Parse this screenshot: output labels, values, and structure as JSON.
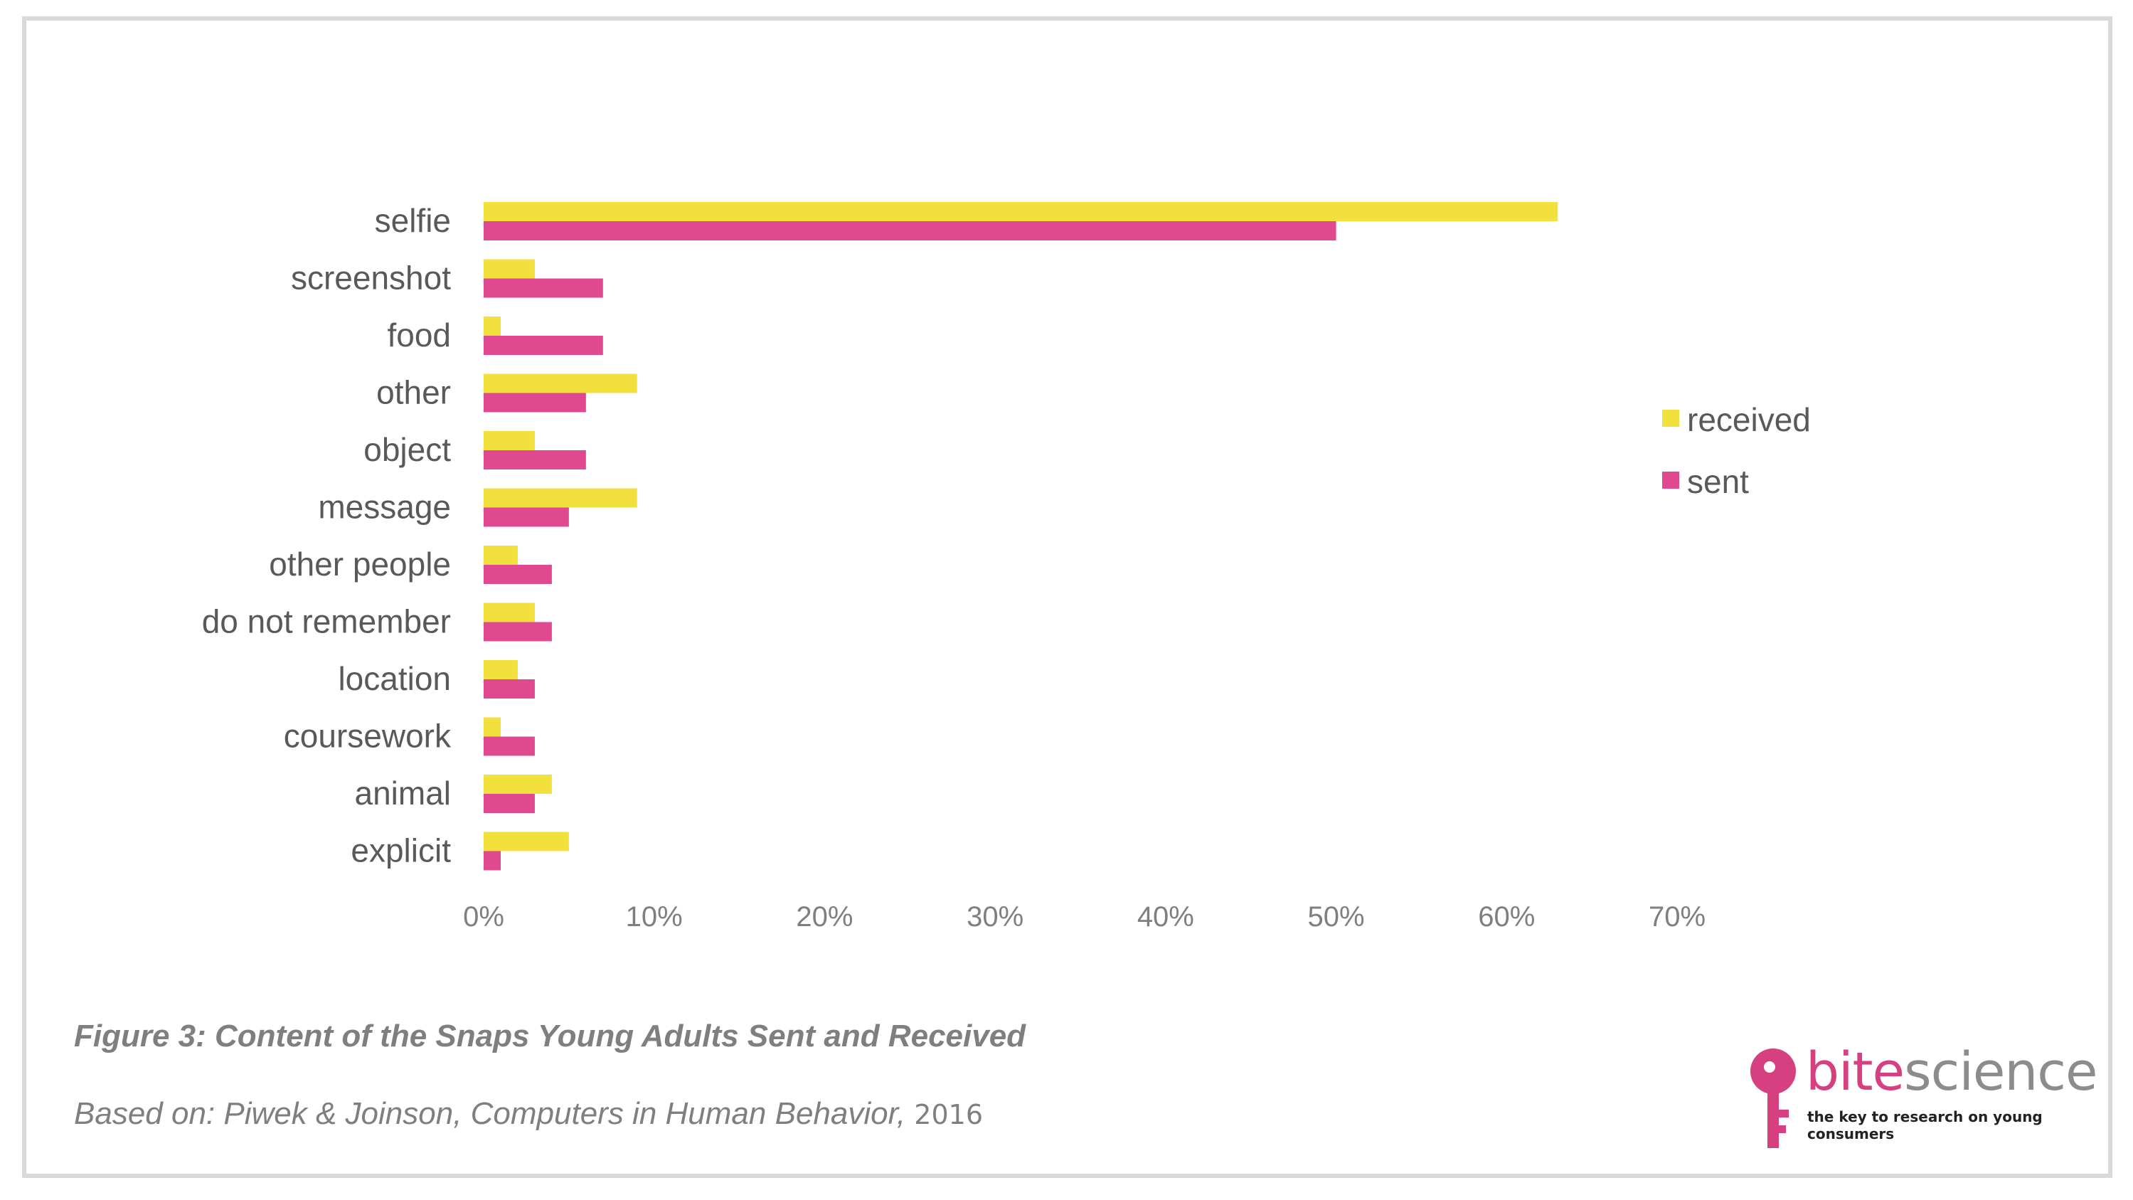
{
  "chart_data": {
    "type": "bar",
    "orientation": "horizontal",
    "categories": [
      "selfie",
      "screenshot",
      "food",
      "other",
      "object",
      "message",
      "other people",
      "do not remember",
      "location",
      "coursework",
      "animal",
      "explicit"
    ],
    "series": [
      {
        "name": "received",
        "color": "#f2e03c",
        "values": [
          63,
          3,
          1,
          9,
          3,
          9,
          2,
          3,
          2,
          1,
          4,
          5
        ]
      },
      {
        "name": "sent",
        "color": "#e0488f",
        "values": [
          50,
          7,
          7,
          6,
          6,
          5,
          4,
          4,
          3,
          3,
          3,
          1
        ]
      }
    ],
    "xlim": [
      0,
      70
    ],
    "xticks": [
      0,
      10,
      20,
      30,
      40,
      50,
      60,
      70
    ],
    "tick_labels": [
      "0%",
      "10%",
      "20%",
      "30%",
      "40%",
      "50%",
      "60%",
      "70%"
    ],
    "grid": false,
    "legend_position": "right"
  },
  "caption": "Figure 3: Content of the Snaps Young Adults Sent and Received",
  "source": {
    "text": "Based on: Piwek & Joinson, Computers in Human Behavior,",
    "year": "2016"
  },
  "logo": {
    "word_part1": "bite",
    "word_part2": "science",
    "tagline": "the key to research on young consumers",
    "icon": "key-icon",
    "colors": {
      "accent": "#d63f80",
      "text": "#8c8c8c"
    }
  }
}
